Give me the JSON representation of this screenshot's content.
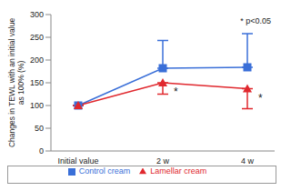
{
  "chart_data": {
    "type": "line",
    "y_label": "Changes in TEWL with an initial value as 100% (%)",
    "note": "* p<0.05",
    "categories": [
      "Initial value",
      "2 w",
      "4 w"
    ],
    "ylim": [
      0,
      300
    ],
    "yticks": [
      0,
      50,
      100,
      150,
      200,
      250,
      300
    ],
    "grid": false,
    "legend": "bottom",
    "series": [
      {
        "name": "Control cream",
        "color": "#3a6fd8",
        "marker": "square",
        "values": [
          100,
          182,
          184
        ],
        "error_up": [
          null,
          61,
          74
        ]
      },
      {
        "name": "Lamellar cream",
        "color": "#e0282e",
        "marker": "triangle",
        "values": [
          100,
          150,
          137
        ],
        "error_down": [
          null,
          25,
          44
        ],
        "marks": [
          null,
          "*",
          "*"
        ]
      }
    ]
  }
}
